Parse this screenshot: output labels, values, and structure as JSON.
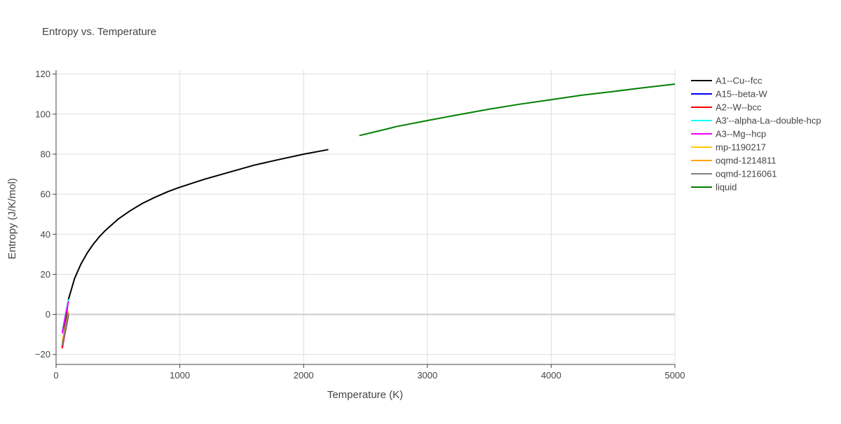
{
  "chart_data": {
    "type": "line",
    "title": "Entropy vs. Temperature",
    "xlabel": "Temperature (K)",
    "ylabel": "Entropy (J/K/mol)",
    "xlim": [
      0,
      5000
    ],
    "ylim": [
      -25,
      122
    ],
    "x_ticks": [
      0,
      1000,
      2000,
      3000,
      4000,
      5000
    ],
    "y_ticks": [
      -20,
      0,
      20,
      40,
      60,
      80,
      100,
      120
    ],
    "x_tick_labels": [
      "0",
      "1000",
      "2000",
      "3000",
      "4000",
      "5000"
    ],
    "y_tick_labels": [
      "−20",
      "0",
      "20",
      "40",
      "60",
      "80",
      "100",
      "120"
    ],
    "grid": true,
    "legend_position": "right",
    "series": [
      {
        "name": "A1--Cu--fcc",
        "color": "#000000",
        "x": [
          50,
          75,
          100,
          150,
          200,
          250,
          300,
          350,
          400,
          500,
          600,
          700,
          800,
          900,
          1000,
          1200,
          1400,
          1600,
          1800,
          2000,
          2200
        ],
        "y": [
          -16.5,
          -4.0,
          7.5,
          18.0,
          25.0,
          30.5,
          35.0,
          38.8,
          42.0,
          47.5,
          51.8,
          55.5,
          58.5,
          61.2,
          63.5,
          67.5,
          71.0,
          74.5,
          77.3,
          80.0,
          82.3
        ]
      },
      {
        "name": "A15--beta-W",
        "color": "#0000ff",
        "x": [
          50,
          75,
          100
        ],
        "y": [
          -16.5,
          -8.5,
          -0.5
        ]
      },
      {
        "name": "A2--W--bcc",
        "color": "#ff0000",
        "x": [
          50,
          75,
          100
        ],
        "y": [
          -17.0,
          -8.0,
          0.0
        ]
      },
      {
        "name": "A3'--alpha-La--double-hcp",
        "color": "#00ffff",
        "x": [
          50,
          75,
          100
        ],
        "y": [
          -8.5,
          -0.5,
          7.5
        ]
      },
      {
        "name": "A3--Mg--hcp",
        "color": "#ff00ff",
        "x": [
          50,
          75,
          100
        ],
        "y": [
          -9.5,
          -1.0,
          6.5
        ]
      },
      {
        "name": "mp-1190217",
        "color": "#ffcc00",
        "x": [
          50,
          75,
          100
        ],
        "y": [
          -13.5,
          -6.0,
          1.5
        ]
      },
      {
        "name": "oqmd-1214811",
        "color": "#ffa500",
        "x": [
          50,
          75,
          100
        ],
        "y": [
          -14.5,
          -6.5,
          1.5
        ]
      },
      {
        "name": "oqmd-1216061",
        "color": "#808080",
        "x": [
          50,
          75,
          100
        ],
        "y": [
          -15.5,
          -7.5,
          0.5
        ]
      },
      {
        "name": "liquid",
        "color": "#008000",
        "x": [
          2450,
          2600,
          2700,
          2750,
          3000,
          3250,
          3500,
          3750,
          4000,
          4250,
          4500,
          4750,
          5000
        ],
        "y": [
          89.3,
          91.5,
          93.0,
          93.8,
          96.8,
          99.7,
          102.5,
          105.0,
          107.2,
          109.5,
          111.3,
          113.2,
          115.0
        ]
      }
    ]
  }
}
